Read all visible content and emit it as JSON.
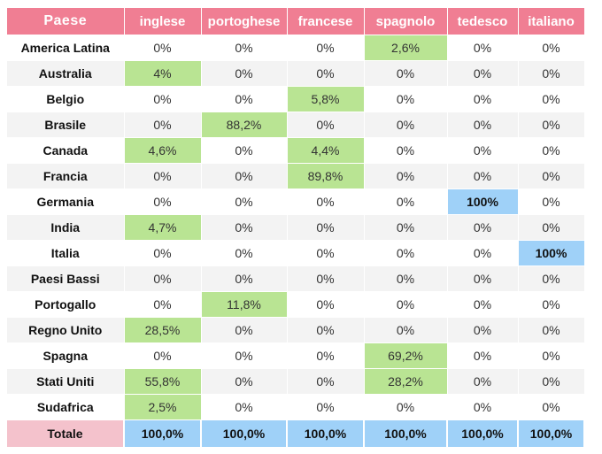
{
  "header": {
    "country": "Paese",
    "languages": [
      "inglese",
      "portoghese",
      "francese",
      "spagnolo",
      "tedesco",
      "italiano"
    ]
  },
  "rows": [
    {
      "country": "America Latina",
      "values": [
        "0%",
        "0%",
        "0%",
        "2,6%",
        "0%",
        "0%"
      ]
    },
    {
      "country": "Australia",
      "values": [
        "4%",
        "0%",
        "0%",
        "0%",
        "0%",
        "0%"
      ]
    },
    {
      "country": "Belgio",
      "values": [
        "0%",
        "0%",
        "5,8%",
        "0%",
        "0%",
        "0%"
      ]
    },
    {
      "country": "Brasile",
      "values": [
        "0%",
        "88,2%",
        "0%",
        "0%",
        "0%",
        "0%"
      ]
    },
    {
      "country": "Canada",
      "values": [
        "4,6%",
        "0%",
        "4,4%",
        "0%",
        "0%",
        "0%"
      ]
    },
    {
      "country": "Francia",
      "values": [
        "0%",
        "0%",
        "89,8%",
        "0%",
        "0%",
        "0%"
      ]
    },
    {
      "country": "Germania",
      "values": [
        "0%",
        "0%",
        "0%",
        "0%",
        "100%",
        "0%"
      ]
    },
    {
      "country": "India",
      "values": [
        "4,7%",
        "0%",
        "0%",
        "0%",
        "0%",
        "0%"
      ]
    },
    {
      "country": "Italia",
      "values": [
        "0%",
        "0%",
        "0%",
        "0%",
        "0%",
        "100%"
      ]
    },
    {
      "country": "Paesi Bassi",
      "values": [
        "0%",
        "0%",
        "0%",
        "0%",
        "0%",
        "0%"
      ]
    },
    {
      "country": "Portogallo",
      "values": [
        "0%",
        "11,8%",
        "0%",
        "0%",
        "0%",
        "0%"
      ]
    },
    {
      "country": "Regno Unito",
      "values": [
        "28,5%",
        "0%",
        "0%",
        "0%",
        "0%",
        "0%"
      ]
    },
    {
      "country": "Spagna",
      "values": [
        "0%",
        "0%",
        "0%",
        "69,2%",
        "0%",
        "0%"
      ]
    },
    {
      "country": "Stati Uniti",
      "values": [
        "55,8%",
        "0%",
        "0%",
        "28,2%",
        "0%",
        "0%"
      ]
    },
    {
      "country": "Sudafrica",
      "values": [
        "2,5%",
        "0%",
        "0%",
        "0%",
        "0%",
        "0%"
      ]
    }
  ],
  "totals": {
    "label": "Totale",
    "values": [
      "100,0%",
      "100,0%",
      "100,0%",
      "100,0%",
      "100,0%",
      "100,0%"
    ]
  },
  "colors": {
    "header_bg": "#f07e93",
    "highlight_green": "#b9e493",
    "highlight_blue": "#9fd1f8",
    "total_label_bg": "#f4c2cc",
    "row_alt_bg": "#f3f3f3"
  }
}
